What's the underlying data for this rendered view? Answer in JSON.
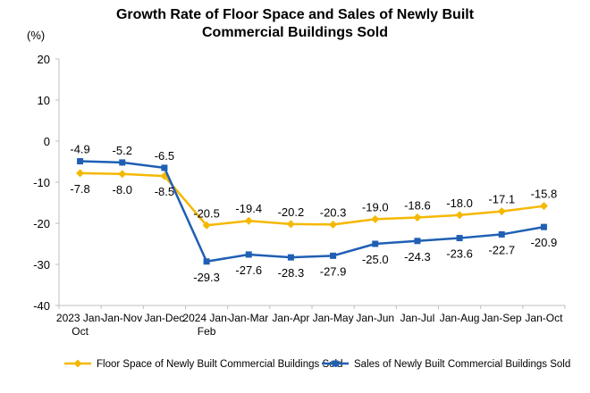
{
  "chart_data": {
    "type": "line",
    "title_line1": "Growth Rate of Floor Space and Sales of Newly Built",
    "title_line2": "Commercial Buildings Sold",
    "unit": "(%)",
    "categories": [
      [
        "2023 Jan-",
        "Oct"
      ],
      [
        "Jan-Nov"
      ],
      [
        "Jan-Dec"
      ],
      [
        "2024 Jan-",
        "Feb"
      ],
      [
        "Jan-Mar"
      ],
      [
        "Jan-Apr"
      ],
      [
        "Jan-May"
      ],
      [
        "Jan-Jun"
      ],
      [
        "Jan-Jul"
      ],
      [
        "Jan-Aug"
      ],
      [
        "Jan-Sep"
      ],
      [
        "Jan-Oct"
      ]
    ],
    "ylim": [
      -40,
      20
    ],
    "yticks": [
      20,
      10,
      0,
      -10,
      -20,
      -30,
      -40
    ],
    "grid": false,
    "legend_position": "bottom",
    "series": [
      {
        "name": "Floor Space of Newly Built Commercial Buildings Sold",
        "color": "#F5B800",
        "marker": "diamond",
        "values": [
          -7.8,
          -8.0,
          -8.5,
          -20.5,
          -19.4,
          -20.2,
          -20.3,
          -19.0,
          -18.6,
          -18.0,
          -17.1,
          -15.8
        ],
        "labels": [
          "-7.8",
          "-8.0",
          "-8.5",
          "-20.5",
          "-19.4",
          "-20.2",
          "-20.3",
          "-19.0",
          "-18.6",
          "-18.0",
          "-17.1",
          "-15.8"
        ]
      },
      {
        "name": "Sales of Newly Built Commercial Buildings Sold",
        "color": "#1F5FB4",
        "marker": "square",
        "values": [
          -4.9,
          -5.2,
          -6.5,
          -29.3,
          -27.6,
          -28.3,
          -27.9,
          -25.0,
          -24.3,
          -23.6,
          -22.7,
          -20.9
        ],
        "labels": [
          "-4.9",
          "-5.2",
          "-6.5",
          "-29.3",
          "-27.6",
          "-28.3",
          "-27.9",
          "-25.0",
          "-24.3",
          "-23.6",
          "-22.7",
          "-20.9"
        ]
      }
    ]
  }
}
